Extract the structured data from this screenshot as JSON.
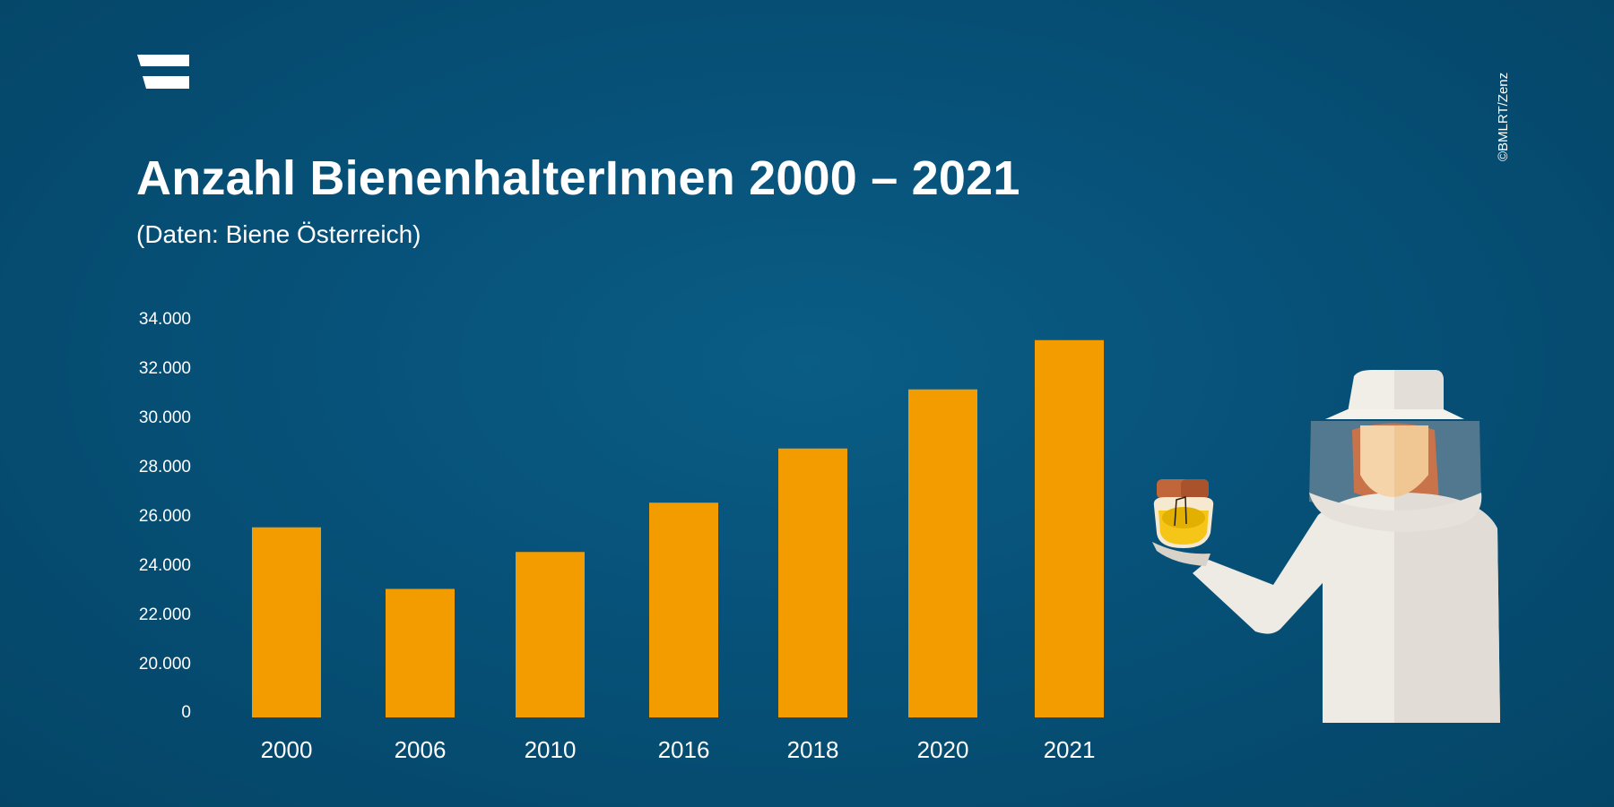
{
  "header": {
    "title": "Anzahl BienenhalterInnen 2000 – 2021",
    "subtitle": "(Daten: Biene Österreich)",
    "copyright": "©BMLRT/Zenz",
    "logo": "ministry-logo-stripes"
  },
  "colors": {
    "background": "#07527a",
    "bar": "#f39c00",
    "text": "#ffffff"
  },
  "illustration": "beekeeper-holding-honey-jar",
  "chart_data": {
    "type": "bar",
    "title": "Anzahl BienenhalterInnen 2000 – 2021",
    "subtitle": "(Daten: Biene Österreich)",
    "xlabel": "",
    "ylabel": "",
    "categories": [
      "2000",
      "2006",
      "2010",
      "2016",
      "2018",
      "2020",
      "2021"
    ],
    "values": [
      25500,
      23000,
      24500,
      26500,
      28700,
      31100,
      33100
    ],
    "y_ticks": [
      "0",
      "20.000",
      "22.000",
      "24.000",
      "26.000",
      "28.000",
      "30.000",
      "32.000",
      "34.000"
    ],
    "y_tick_values": [
      0,
      20000,
      22000,
      24000,
      26000,
      28000,
      30000,
      32000,
      34000
    ],
    "ylim": [
      0,
      34000
    ],
    "axis_break": "between 0 and 20.000",
    "grid": false,
    "legend": "none"
  }
}
